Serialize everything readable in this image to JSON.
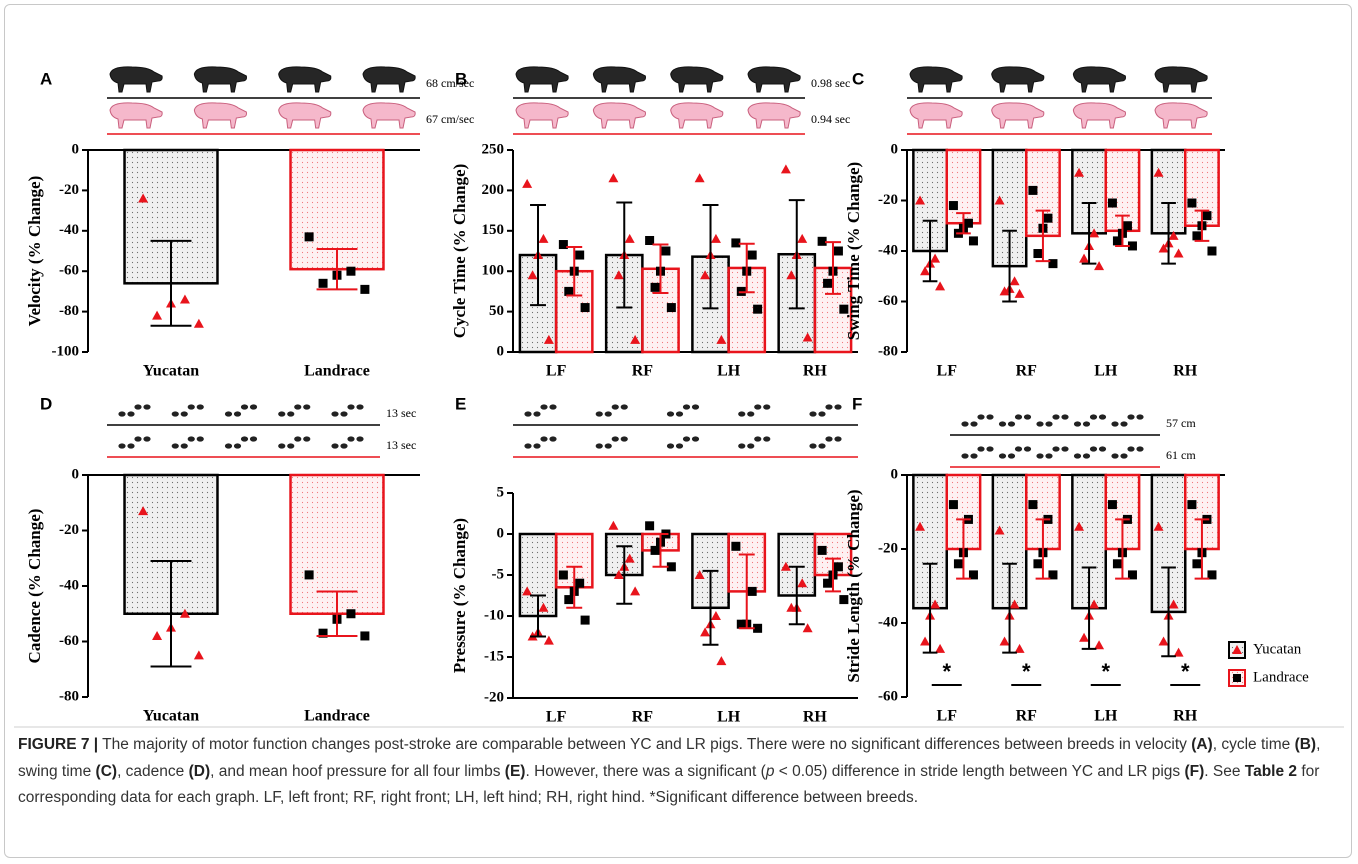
{
  "chart_data": [
    {
      "type": "bar",
      "label": "A",
      "ylabel": "Velocity (% Change)",
      "annotations": [
        "68 cm/sec",
        "67 cm/sec"
      ],
      "categories": [
        "Yucatan",
        "Landrace"
      ],
      "colors": [
        "#000000",
        "#e8141c"
      ],
      "values": [
        -66,
        -59
      ],
      "errors": [
        21,
        10
      ],
      "points": [
        [
          -24,
          -74,
          -76,
          -82,
          -86
        ],
        [
          -43,
          -60,
          -62,
          -66,
          -69
        ]
      ],
      "ylim": [
        -100,
        0
      ],
      "yticks": [
        0,
        -20,
        -40,
        -60,
        -80,
        -100
      ]
    },
    {
      "type": "bar",
      "label": "B",
      "ylabel": "Cycle Time (% Change)",
      "annotations": [
        "0.98 sec",
        "0.94 sec"
      ],
      "categories": [
        "LF",
        "RF",
        "LH",
        "RH"
      ],
      "series": [
        {
          "color": "#000000",
          "values": [
            120,
            120,
            118,
            121
          ],
          "errors": [
            62,
            65,
            64,
            67
          ],
          "points": [
            [
              208,
              140,
              120,
              95,
              15
            ],
            [
              215,
              140,
              120,
              95,
              15
            ],
            [
              215,
              140,
              120,
              95,
              15
            ],
            [
              226,
              140,
              120,
              95,
              18
            ]
          ]
        },
        {
          "color": "#e8141c",
          "values": [
            100,
            103,
            104,
            104
          ],
          "errors": [
            30,
            30,
            30,
            32
          ],
          "points": [
            [
              133,
              120,
              100,
              75,
              55
            ],
            [
              138,
              125,
              100,
              80,
              55
            ],
            [
              135,
              120,
              100,
              75,
              53
            ],
            [
              137,
              125,
              100,
              85,
              53
            ]
          ]
        }
      ],
      "ylim": [
        0,
        250
      ],
      "yticks": [
        0,
        50,
        100,
        150,
        200,
        250
      ]
    },
    {
      "type": "bar",
      "label": "C",
      "ylabel": "Swing Time (% Change)",
      "categories": [
        "LF",
        "RF",
        "LH",
        "RH"
      ],
      "series": [
        {
          "color": "#000000",
          "values": [
            -40,
            -46,
            -33,
            -33
          ],
          "errors": [
            12,
            14,
            12,
            12
          ],
          "points": [
            [
              -20,
              -43,
              -45,
              -48,
              -54
            ],
            [
              -20,
              -52,
              -55,
              -56,
              -57
            ],
            [
              -9,
              -33,
              -38,
              -43,
              -46
            ],
            [
              -9,
              -34,
              -37,
              -39,
              -41
            ]
          ]
        },
        {
          "color": "#e8141c",
          "values": [
            -29,
            -34,
            -32,
            -30
          ],
          "errors": [
            4,
            10,
            6,
            6
          ],
          "points": [
            [
              -22,
              -29,
              -31,
              -33,
              -36
            ],
            [
              -16,
              -27,
              -31,
              -41,
              -45
            ],
            [
              -21,
              -30,
              -33,
              -36,
              -38
            ],
            [
              -21,
              -26,
              -30,
              -34,
              -40
            ]
          ]
        }
      ],
      "ylim": [
        -80,
        0
      ],
      "yticks": [
        0,
        -20,
        -40,
        -60,
        -80
      ]
    },
    {
      "type": "bar",
      "label": "D",
      "ylabel": "Cadence (% Change)",
      "annotations": [
        "13 sec",
        "13 sec"
      ],
      "categories": [
        "Yucatan",
        "Landrace"
      ],
      "colors": [
        "#000000",
        "#e8141c"
      ],
      "values": [
        -50,
        -50
      ],
      "errors": [
        19,
        8
      ],
      "points": [
        [
          -13,
          -50,
          -55,
          -58,
          -65
        ],
        [
          -36,
          -50,
          -52,
          -57,
          -58
        ]
      ],
      "ylim": [
        -80,
        0
      ],
      "yticks": [
        0,
        -20,
        -40,
        -60,
        -80
      ]
    },
    {
      "type": "bar",
      "label": "E",
      "ylabel": "Pressure (% Change)",
      "categories": [
        "LF",
        "RF",
        "LH",
        "RH"
      ],
      "series": [
        {
          "color": "#000000",
          "values": [
            -10,
            -5,
            -9,
            -7.5
          ],
          "errors": [
            2.5,
            3.5,
            4.5,
            3.5
          ],
          "points": [
            [
              -7,
              -9,
              -12,
              -12.5,
              -13
            ],
            [
              1,
              -3,
              -4,
              -5,
              -7
            ],
            [
              -5,
              -10,
              -11,
              -12,
              -15.5
            ],
            [
              -4,
              -6,
              -9,
              -9,
              -11.5
            ]
          ]
        },
        {
          "color": "#e8141c",
          "values": [
            -6.5,
            -2,
            -7,
            -5
          ],
          "errors": [
            2.5,
            2,
            4.5,
            2
          ],
          "points": [
            [
              -5,
              -6,
              -7,
              -8,
              -10.5
            ],
            [
              1,
              0,
              -1,
              -2,
              -4
            ],
            [
              -1.5,
              -7,
              -11,
              -11,
              -11.5
            ],
            [
              -2,
              -4,
              -5,
              -6,
              -8
            ]
          ]
        }
      ],
      "ylim": [
        -20,
        5
      ],
      "yticks": [
        5,
        0,
        -5,
        -10,
        -15,
        -20
      ]
    },
    {
      "type": "bar",
      "label": "F",
      "ylabel": "Stride Length (% Change)",
      "annotations": [
        "57 cm",
        "61 cm"
      ],
      "categories": [
        "LF",
        "RF",
        "LH",
        "RH"
      ],
      "significance": [
        "*",
        "*",
        "*",
        "*"
      ],
      "legend": "right",
      "series": [
        {
          "name": "Yucatan",
          "color": "#000000",
          "values": [
            -36,
            -36,
            -36,
            -37
          ],
          "errors": [
            12,
            12,
            11,
            12
          ],
          "points": [
            [
              -14,
              -35,
              -38,
              -45,
              -47
            ],
            [
              -15,
              -35,
              -38,
              -45,
              -47
            ],
            [
              -14,
              -35,
              -38,
              -44,
              -46
            ],
            [
              -14,
              -35,
              -38,
              -45,
              -48
            ]
          ]
        },
        {
          "name": "Landrace",
          "color": "#e8141c",
          "values": [
            -20,
            -20,
            -20,
            -20
          ],
          "errors": [
            8,
            8,
            8,
            8
          ],
          "points": [
            [
              -8,
              -12,
              -21,
              -24,
              -27
            ],
            [
              -8,
              -12,
              -21,
              -24,
              -27
            ],
            [
              -8,
              -12,
              -21,
              -24,
              -27
            ],
            [
              -8,
              -12,
              -21,
              -24,
              -27
            ]
          ]
        }
      ],
      "ylim": [
        -60,
        0
      ],
      "yticks": [
        0,
        -20,
        -40,
        -60
      ]
    }
  ],
  "caption": {
    "runs": [
      {
        "text": "FIGURE 7 |",
        "bold": true
      },
      {
        "text": " The majority of motor function changes post-stroke are comparable between YC and LR pigs. There were no significant differences between breeds in velocity "
      },
      {
        "text": "(A)",
        "bold": true
      },
      {
        "text": ", cycle time "
      },
      {
        "text": "(B)",
        "bold": true
      },
      {
        "text": ", swing time "
      },
      {
        "text": "(C)",
        "bold": true
      },
      {
        "text": ", cadence "
      },
      {
        "text": "(D)",
        "bold": true
      },
      {
        "text": ", and mean hoof pressure for all four limbs "
      },
      {
        "text": "(E)",
        "bold": true
      },
      {
        "text": ". However, there was a significant ("
      },
      {
        "text": "p",
        "italic": true
      },
      {
        "text": " < 0.05) difference in stride length between YC and LR pigs "
      },
      {
        "text": "(F)",
        "bold": true
      },
      {
        "text": ". See "
      },
      {
        "text": "Table 2",
        "bold": true
      },
      {
        "text": " for corresponding data for each graph. LF, left front; RF, right front; LH, left hind; RH, right hind. *Significant difference between breeds."
      }
    ]
  }
}
